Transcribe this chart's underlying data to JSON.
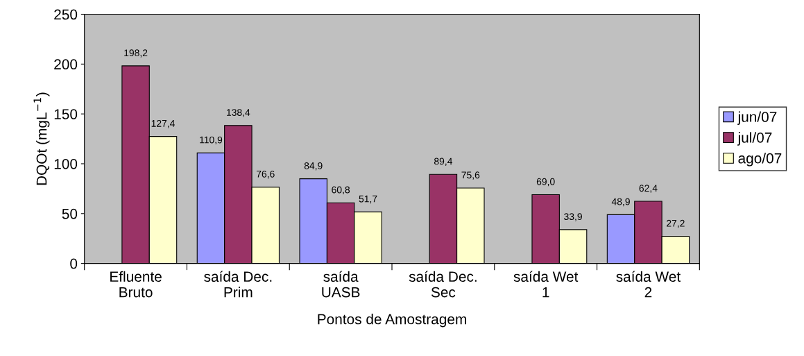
{
  "chart_data": {
    "type": "bar",
    "xlabel": "Pontos de Amostragem",
    "ylabel": "DQOt (mgL$^{−1}$)",
    "categories": [
      "Efluente\nBruto",
      "saída Dec.\nPrim",
      "saída\nUASB",
      "saída Dec.\nSec",
      "saída Wet\n1",
      "saída Wet\n2"
    ],
    "series": [
      {
        "name": "jun/07",
        "color": "#9999ff",
        "values": [
          null,
          110.9,
          84.9,
          null,
          null,
          48.9
        ],
        "value_labels": [
          null,
          "110,9",
          "84,9",
          null,
          null,
          "48,9"
        ]
      },
      {
        "name": "jul/07",
        "color": "#993366",
        "values": [
          198.2,
          138.4,
          60.8,
          89.4,
          69.0,
          62.4
        ],
        "value_labels": [
          "198,2",
          "138,4",
          "60,8",
          "89,4",
          "69,0",
          "62,4"
        ]
      },
      {
        "name": "ago/07",
        "color": "#ffffcc",
        "values": [
          127.4,
          76.6,
          51.7,
          75.6,
          33.9,
          27.2
        ],
        "value_labels": [
          "127,4",
          "76,6",
          "51,7",
          "75,6",
          "33,9",
          "27,2"
        ]
      }
    ],
    "ylim": [
      0,
      250
    ],
    "yticks": [
      0,
      50,
      100,
      150,
      200,
      250
    ],
    "legend": "right",
    "grid": false
  }
}
